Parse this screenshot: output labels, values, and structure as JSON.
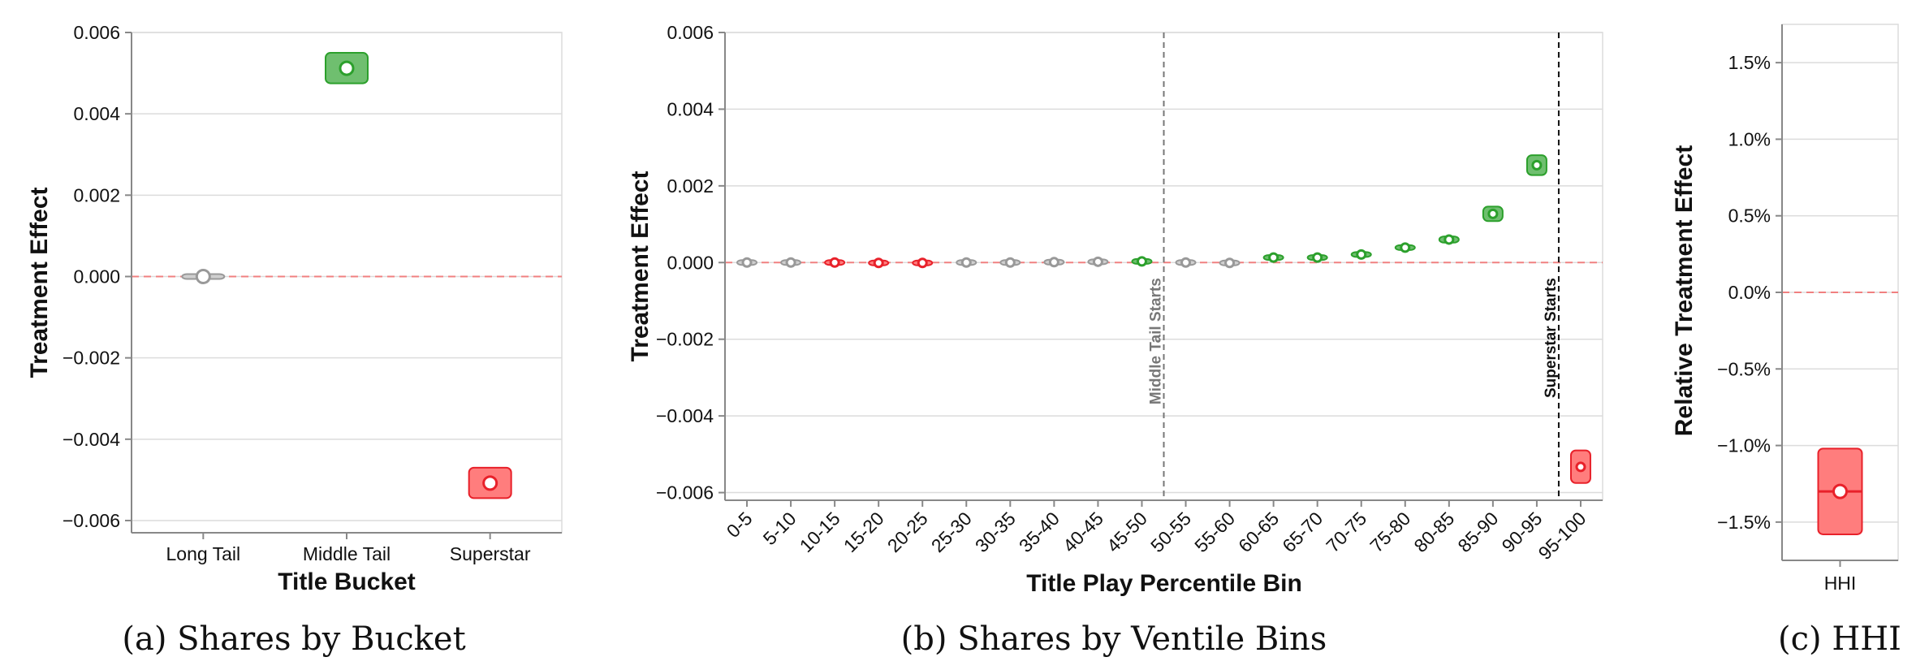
{
  "colors": {
    "significant_positive": "#2ca02c",
    "significant_negative": "#e8212a",
    "not_significant": "#999999",
    "zero_line": "#f08080"
  },
  "chart_data": [
    {
      "type": "scatter",
      "caption": "(a) Shares by Bucket",
      "xlabel": "Title Bucket",
      "ylabel": "Treatment Effect",
      "categories": [
        "Long Tail",
        "Middle Tail",
        "Superstar"
      ],
      "ylim": [
        -0.0063,
        0.006
      ],
      "yticks": [
        "0.006",
        "0.004",
        "0.002",
        "0.000",
        "−0.002",
        "−0.004",
        "−0.006"
      ],
      "yticks_values": [
        0.006,
        0.004,
        0.002,
        0,
        -0.002,
        -0.004,
        -0.006
      ],
      "grid": true,
      "points": [
        {
          "x": "Long Tail",
          "y": 0.0,
          "ci": [
            -2e-05,
            2e-05
          ],
          "significance": "none"
        },
        {
          "x": "Middle Tail",
          "y": 0.00512,
          "ci": [
            0.00475,
            0.0055
          ],
          "significance": "positive"
        },
        {
          "x": "Superstar",
          "y": -0.00508,
          "ci": [
            -0.00545,
            -0.0047
          ],
          "significance": "negative"
        }
      ]
    },
    {
      "type": "scatter",
      "caption": "(b) Shares by Ventile Bins",
      "xlabel": "Title Play Percentile Bin",
      "ylabel": "Treatment Effect",
      "categories": [
        "0-5",
        "5-10",
        "10-15",
        "15-20",
        "20-25",
        "25-30",
        "30-35",
        "35-40",
        "40-45",
        "45-50",
        "50-55",
        "55-60",
        "60-65",
        "65-70",
        "70-75",
        "75-80",
        "80-85",
        "85-90",
        "90-95",
        "95-100"
      ],
      "ylim": [
        -0.0062,
        0.006
      ],
      "yticks": [
        "0.006",
        "0.004",
        "0.002",
        "0.000",
        "−0.002",
        "−0.004",
        "−0.006"
      ],
      "yticks_values": [
        0.006,
        0.004,
        0.002,
        0,
        -0.002,
        -0.004,
        -0.006
      ],
      "grid": true,
      "points": [
        {
          "x": "0-5",
          "y": 0.0,
          "ci": [
            -1e-05,
            1e-05
          ],
          "significance": "none"
        },
        {
          "x": "5-10",
          "y": 0.0,
          "ci": [
            -1e-05,
            1e-05
          ],
          "significance": "none"
        },
        {
          "x": "10-15",
          "y": 0.0,
          "ci": [
            -2e-05,
            2e-05
          ],
          "significance": "negative"
        },
        {
          "x": "15-20",
          "y": -1e-05,
          "ci": [
            -3e-05,
            1e-05
          ],
          "significance": "negative"
        },
        {
          "x": "20-25",
          "y": -1e-05,
          "ci": [
            -3e-05,
            1e-05
          ],
          "significance": "negative"
        },
        {
          "x": "25-30",
          "y": 0.0,
          "ci": [
            -1e-05,
            1e-05
          ],
          "significance": "none"
        },
        {
          "x": "30-35",
          "y": 0.0,
          "ci": [
            -1e-05,
            1e-05
          ],
          "significance": "none"
        },
        {
          "x": "35-40",
          "y": 1e-05,
          "ci": [
            -1e-05,
            3e-05
          ],
          "significance": "none"
        },
        {
          "x": "40-45",
          "y": 2e-05,
          "ci": [
            0.0,
            4e-05
          ],
          "significance": "none"
        },
        {
          "x": "45-50",
          "y": 3e-05,
          "ci": [
            1e-05,
            5e-05
          ],
          "significance": "positive"
        },
        {
          "x": "50-55",
          "y": 0.0,
          "ci": [
            -2e-05,
            2e-05
          ],
          "significance": "none"
        },
        {
          "x": "55-60",
          "y": -1e-05,
          "ci": [
            -3e-05,
            1e-05
          ],
          "significance": "none"
        },
        {
          "x": "60-65",
          "y": 0.00013,
          "ci": [
            9e-05,
            0.00017
          ],
          "significance": "positive"
        },
        {
          "x": "65-70",
          "y": 0.00013,
          "ci": [
            9e-05,
            0.00017
          ],
          "significance": "positive"
        },
        {
          "x": "70-75",
          "y": 0.00021,
          "ci": [
            0.00016,
            0.00026
          ],
          "significance": "positive"
        },
        {
          "x": "75-80",
          "y": 0.00039,
          "ci": [
            0.00033,
            0.00045
          ],
          "significance": "positive"
        },
        {
          "x": "80-85",
          "y": 0.0006,
          "ci": [
            0.00052,
            0.00068
          ],
          "significance": "positive"
        },
        {
          "x": "85-90",
          "y": 0.00127,
          "ci": [
            0.00108,
            0.00146
          ],
          "significance": "positive"
        },
        {
          "x": "90-95",
          "y": 0.00254,
          "ci": [
            0.00228,
            0.0028
          ],
          "significance": "positive"
        },
        {
          "x": "95-100",
          "y": -0.00533,
          "ci": [
            -0.00575,
            -0.0049
          ],
          "significance": "negative"
        }
      ],
      "annotations": [
        {
          "text": "Middle Tail Starts",
          "x_between": [
            "45-50",
            "50-55"
          ],
          "color": "#777777"
        },
        {
          "text": "Superstar Starts",
          "x_between": [
            "90-95",
            "95-100"
          ],
          "color": "#111111"
        }
      ]
    },
    {
      "type": "scatter",
      "caption": "(c) HHI",
      "xlabel": "",
      "ylabel": "Relative Treatment Effect",
      "categories": [
        "HHI"
      ],
      "ylim": [
        -1.75,
        1.75
      ],
      "yticks": [
        "1.5%",
        "1.0%",
        "0.5%",
        "0.0%",
        "−0.5%",
        "−1.0%",
        "−1.5%"
      ],
      "yticks_values": [
        1.5,
        1.0,
        0.5,
        0,
        -0.5,
        -1.0,
        -1.5
      ],
      "grid": true,
      "points": [
        {
          "x": "HHI",
          "y": -1.3,
          "ci": [
            -1.58,
            -1.02
          ],
          "significance": "negative"
        }
      ]
    }
  ]
}
